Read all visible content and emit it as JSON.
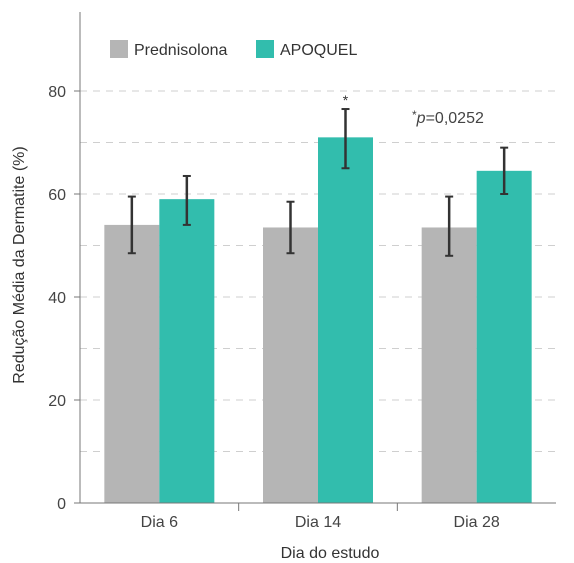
{
  "chart_data": {
    "type": "bar",
    "title": "",
    "xlabel": "Dia do estudo",
    "ylabel": "Redução Média da Dermatite (%)",
    "categories": [
      "Dia 6",
      "Dia 14",
      "Dia 28"
    ],
    "ylim": [
      0,
      80
    ],
    "yticks": [
      "0",
      "20",
      "40",
      "60",
      "80"
    ],
    "grid": true,
    "legend_position": "top-left",
    "series": [
      {
        "name": "Prednisolona",
        "color": "#b5b5b5",
        "values": [
          54,
          53.5,
          53.5
        ],
        "err_low": [
          48.5,
          48.5,
          48
        ],
        "err_high": [
          59.5,
          58.5,
          59.5
        ]
      },
      {
        "name": "APOQUEL",
        "color": "#32bdad",
        "values": [
          59,
          71,
          64.5
        ],
        "err_low": [
          54,
          65,
          60
        ],
        "err_high": [
          63.5,
          76.5,
          69
        ]
      }
    ],
    "significance_marker": "*",
    "annotation_prefix": "*",
    "annotation_italic": "p",
    "annotation_value": "=0,0252"
  }
}
